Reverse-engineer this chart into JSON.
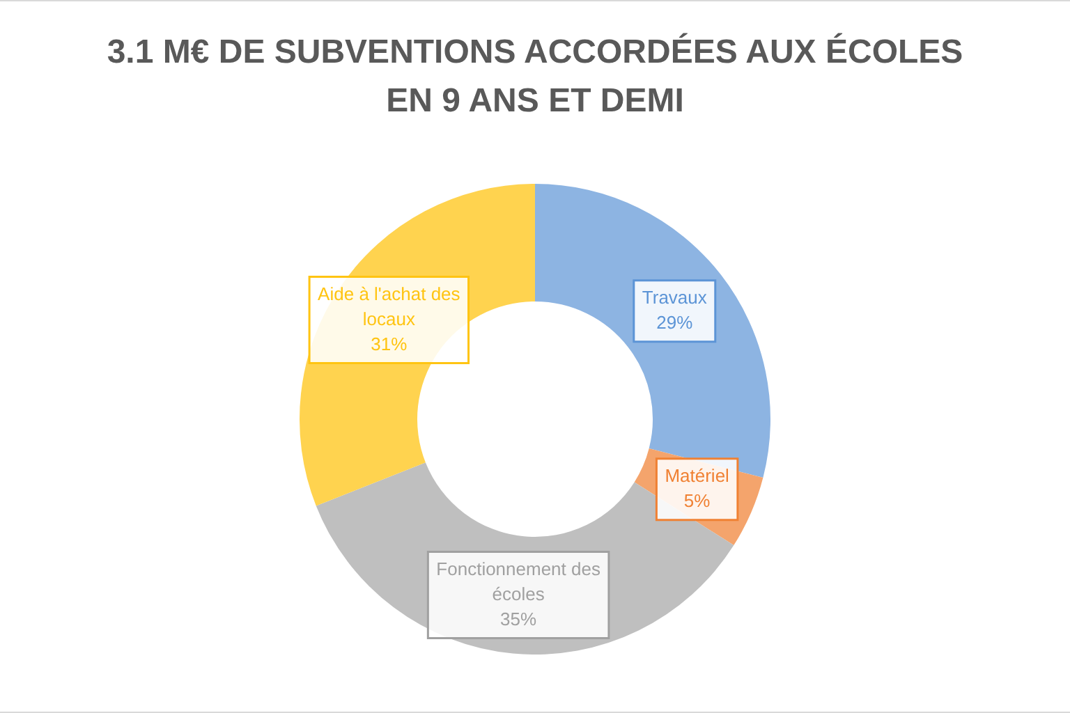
{
  "chart_data": {
    "type": "donut",
    "title": "3.1 M€ DE SUBVENTIONS ACCORDÉES AUX ÉCOLES EN 9 ANS ET DEMI",
    "categories": [
      "Travaux",
      "Matériel",
      "Fonctionnement des écoles",
      "Aide à l'achat des locaux"
    ],
    "values": [
      29,
      5,
      35,
      31
    ],
    "colors": [
      "#8db4e2",
      "#f4a46c",
      "#bfbfbf",
      "#ffd34f"
    ],
    "value_labels": [
      "29%",
      "5%",
      "35%",
      "31%"
    ],
    "legend": false
  }
}
